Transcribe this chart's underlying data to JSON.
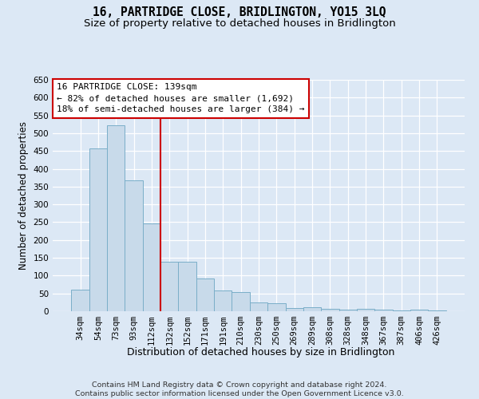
{
  "title": "16, PARTRIDGE CLOSE, BRIDLINGTON, YO15 3LQ",
  "subtitle": "Size of property relative to detached houses in Bridlington",
  "xlabel_bottom": "Distribution of detached houses by size in Bridlington",
  "ylabel": "Number of detached properties",
  "footer": "Contains HM Land Registry data © Crown copyright and database right 2024.\nContains public sector information licensed under the Open Government Licence v3.0.",
  "bar_labels": [
    "34sqm",
    "54sqm",
    "73sqm",
    "93sqm",
    "112sqm",
    "132sqm",
    "152sqm",
    "171sqm",
    "191sqm",
    "210sqm",
    "230sqm",
    "250sqm",
    "269sqm",
    "289sqm",
    "308sqm",
    "328sqm",
    "348sqm",
    "367sqm",
    "387sqm",
    "406sqm",
    "426sqm"
  ],
  "bar_values": [
    60,
    457,
    522,
    367,
    247,
    140,
    140,
    92,
    58,
    53,
    25,
    23,
    10,
    12,
    7,
    5,
    7,
    5,
    3,
    5,
    3
  ],
  "bar_color": "#c8daea",
  "bar_edge_color": "#7aaec8",
  "background_color": "#dce8f5",
  "plot_bg_color": "#dce8f5",
  "grid_color": "#ffffff",
  "ylim": [
    0,
    650
  ],
  "yticks": [
    0,
    50,
    100,
    150,
    200,
    250,
    300,
    350,
    400,
    450,
    500,
    550,
    600,
    650
  ],
  "property_bin_index": 5,
  "vline_color": "#cc0000",
  "annotation_title": "16 PARTRIDGE CLOSE: 139sqm",
  "annotation_line1": "← 82% of detached houses are smaller (1,692)",
  "annotation_line2": "18% of semi-detached houses are larger (384) →",
  "annotation_box_color": "#ffffff",
  "annotation_border_color": "#cc0000",
  "title_fontsize": 10.5,
  "subtitle_fontsize": 9.5,
  "ylabel_fontsize": 8.5,
  "xlabel_fontsize": 9,
  "tick_fontsize": 7.5,
  "annotation_fontsize": 8,
  "footer_fontsize": 6.8
}
